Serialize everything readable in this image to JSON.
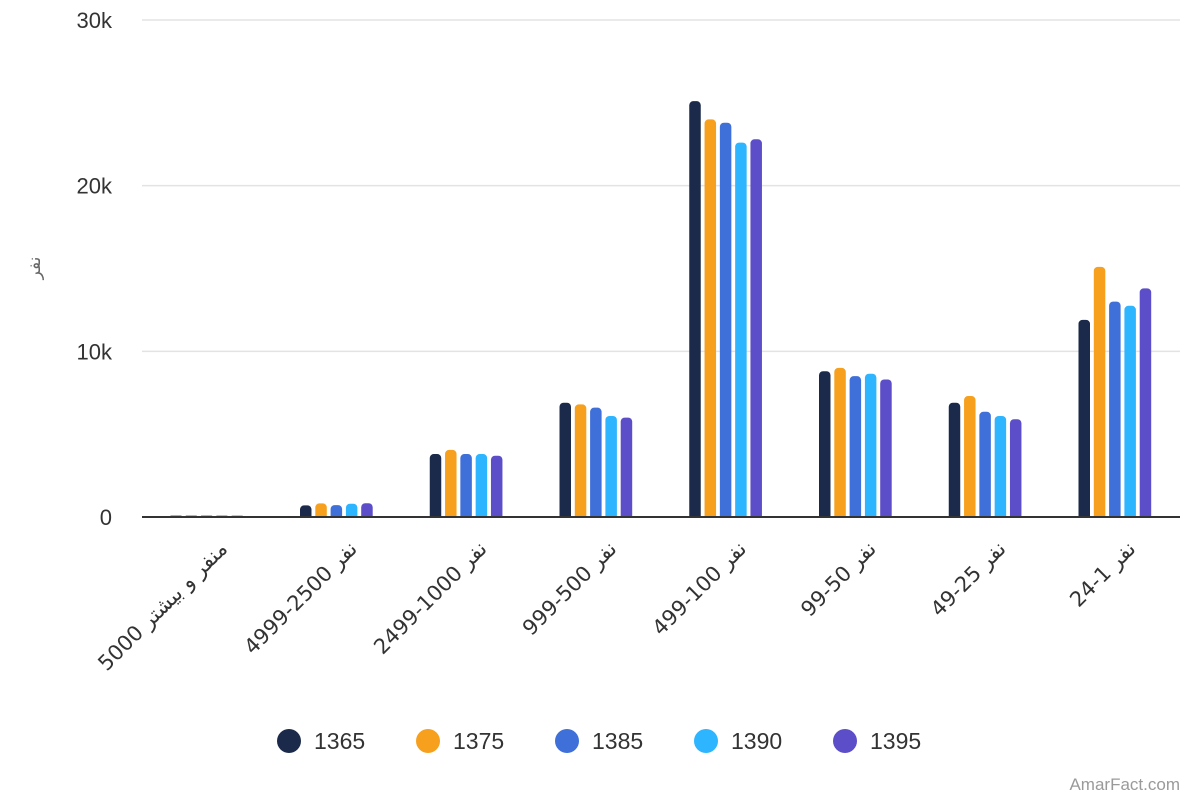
{
  "chart_data": {
    "type": "bar",
    "title": "",
    "xlabel": "",
    "ylabel": "نفر",
    "ylim": [
      0,
      30000
    ],
    "y_ticks": [
      {
        "value": 0,
        "label": "0"
      },
      {
        "value": 10000,
        "label": "10k"
      },
      {
        "value": 20000,
        "label": "20k"
      },
      {
        "value": 30000,
        "label": "30k"
      }
    ],
    "grid": true,
    "legend_position": "bottom",
    "categories": [
      "5000 منفر و بیشتر",
      "4999-2500 نفر",
      "2499-1000 نفر",
      "999-500 نفر",
      "499-100 نفر",
      "99-50 نفر",
      "49-25 نفر",
      "24-1 نفر"
    ],
    "series": [
      {
        "name": "1365",
        "color": "#1b2a4a",
        "values": [
          80,
          700,
          3800,
          6900,
          25100,
          8800,
          6900,
          11900
        ]
      },
      {
        "name": "1375",
        "color": "#f7a01e",
        "values": [
          110,
          820,
          4050,
          6800,
          24000,
          9000,
          7300,
          15100
        ]
      },
      {
        "name": "1385",
        "color": "#3f6fd8",
        "values": [
          90,
          720,
          3800,
          6600,
          23800,
          8500,
          6350,
          13000
        ]
      },
      {
        "name": "1390",
        "color": "#2eb5ff",
        "values": [
          95,
          800,
          3800,
          6100,
          22600,
          8650,
          6100,
          12750
        ]
      },
      {
        "name": "1395",
        "color": "#5b4ec8",
        "values": [
          85,
          830,
          3700,
          6000,
          22800,
          8300,
          5900,
          13800
        ]
      }
    ]
  },
  "source": "AmarFact.com"
}
